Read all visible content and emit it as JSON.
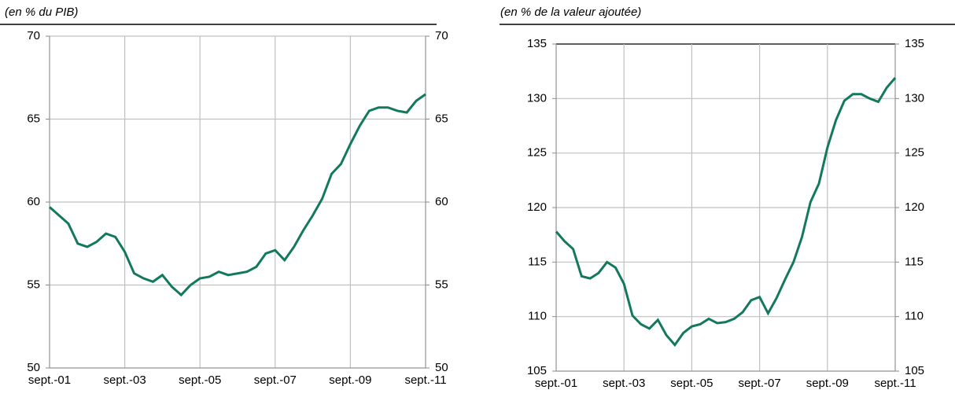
{
  "chart_data": [
    {
      "type": "line",
      "subtitle": "(en % du PIB)",
      "categories": [
        "sept.-01",
        null,
        null,
        null,
        null,
        null,
        null,
        null,
        "sept.-03",
        null,
        null,
        null,
        null,
        null,
        null,
        null,
        "sept.-05",
        null,
        null,
        null,
        null,
        null,
        null,
        null,
        "sept.-07",
        null,
        null,
        null,
        null,
        null,
        null,
        null,
        "sept.-09",
        null,
        null,
        null,
        null,
        null,
        null,
        null,
        "sept.-11"
      ],
      "series": [
        {
          "name": null,
          "color": "#12795c",
          "values": [
            59.7,
            59.2,
            58.7,
            57.5,
            57.3,
            57.6,
            58.1,
            57.9,
            57.0,
            55.7,
            55.4,
            55.2,
            55.6,
            54.9,
            54.4,
            55.0,
            55.4,
            55.5,
            55.8,
            55.6,
            55.7,
            55.8,
            56.1,
            56.9,
            57.1,
            56.5,
            57.3,
            58.3,
            59.2,
            60.2,
            61.7,
            62.3,
            63.5,
            64.6,
            65.5,
            65.7,
            65.7,
            65.5,
            65.4,
            66.1,
            66.5
          ]
        }
      ],
      "ylim": [
        50,
        70
      ],
      "yticks": [
        50,
        55,
        60,
        65,
        70
      ],
      "grid": true
    },
    {
      "type": "line",
      "subtitle": "(en % de la valeur ajoutée)",
      "categories": [
        "sept.-01",
        null,
        null,
        null,
        null,
        null,
        null,
        null,
        "sept.-03",
        null,
        null,
        null,
        null,
        null,
        null,
        null,
        "sept.-05",
        null,
        null,
        null,
        null,
        null,
        null,
        null,
        "sept.-07",
        null,
        null,
        null,
        null,
        null,
        null,
        null,
        "sept.-09",
        null,
        null,
        null,
        null,
        null,
        null,
        null,
        "sept.-11"
      ],
      "series": [
        {
          "name": null,
          "color": "#12795c",
          "values": [
            117.8,
            116.9,
            116.2,
            113.7,
            113.5,
            114.0,
            115.0,
            114.5,
            113.0,
            110.1,
            109.3,
            108.9,
            109.7,
            108.3,
            107.4,
            108.5,
            109.1,
            109.3,
            109.8,
            109.4,
            109.5,
            109.8,
            110.4,
            111.5,
            111.8,
            110.3,
            111.7,
            113.4,
            115.0,
            117.3,
            120.5,
            122.2,
            125.5,
            128.0,
            129.8,
            130.4,
            130.4,
            130.0,
            129.7,
            131.0,
            131.9
          ]
        }
      ],
      "ylim": [
        105,
        135
      ],
      "yticks": [
        105,
        110,
        115,
        120,
        125,
        130,
        135
      ],
      "grid": true
    }
  ]
}
